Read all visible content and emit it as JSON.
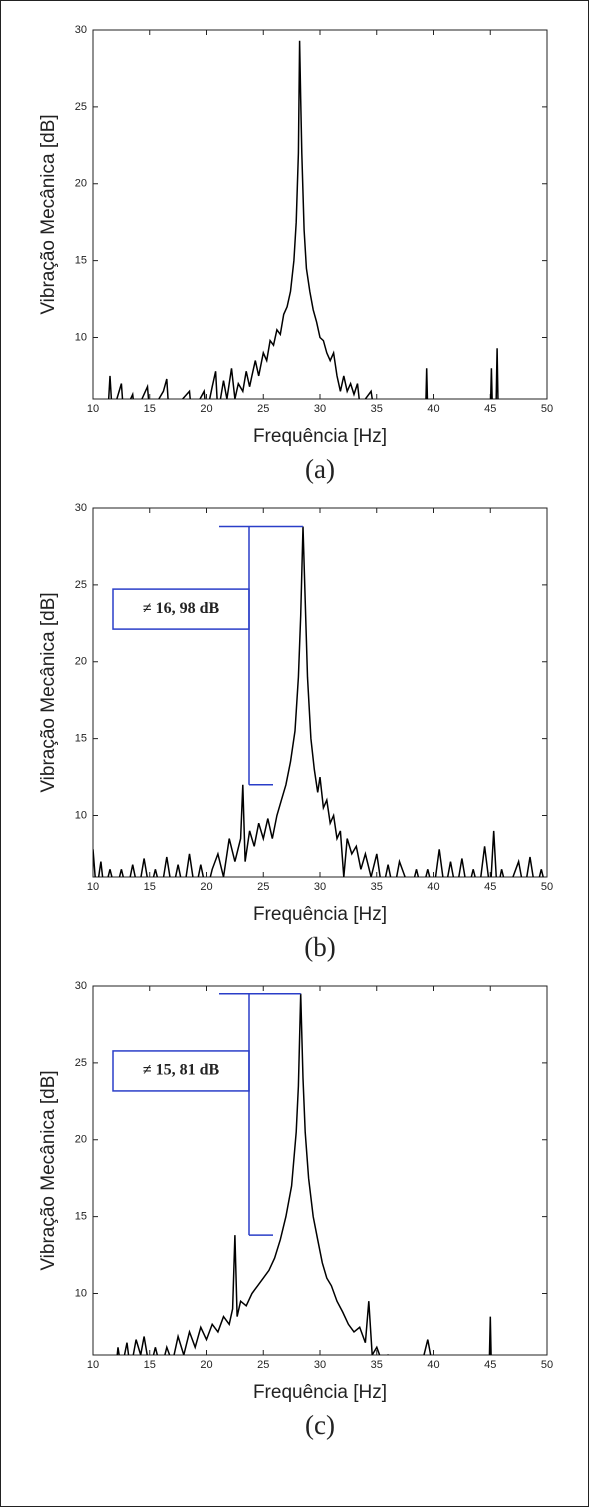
{
  "chart_data": [
    {
      "type": "line",
      "caption": "(a)",
      "xlabel": "Frequência [Hz]",
      "ylabel": "Vibração Mecânica [dB]",
      "color": "#000000",
      "xlim": [
        10,
        50
      ],
      "ylim": [
        6,
        30
      ],
      "xticks": [
        10,
        15,
        20,
        25,
        30,
        35,
        40,
        45,
        50
      ],
      "yticks": [
        10,
        15,
        20,
        25,
        30
      ],
      "x": [
        10,
        11.3,
        11.5,
        11.7,
        12.5,
        12.7,
        13.5,
        13.7,
        14.8,
        15,
        16.2,
        16.5,
        16.7,
        18.5,
        18.7,
        19.8,
        20,
        20.5,
        20.8,
        21,
        21.5,
        21.8,
        22.2,
        22.5,
        22.8,
        23.2,
        23.5,
        23.8,
        24,
        24.3,
        24.6,
        25,
        25.3,
        25.6,
        25.9,
        26.2,
        26.5,
        26.8,
        27.1,
        27.4,
        27.7,
        27.9,
        28.1,
        28.2,
        28.3,
        28.4,
        28.6,
        28.8,
        29.1,
        29.4,
        29.7,
        30,
        30.3,
        30.6,
        30.9,
        31.2,
        31.5,
        31.8,
        32.1,
        32.4,
        32.7,
        33,
        33.3,
        33.6,
        34,
        34.5,
        34.8,
        39.3,
        39.4,
        39.5,
        45,
        45.1,
        45.2,
        45.5,
        45.6,
        45.7,
        50
      ],
      "values": [
        5,
        5,
        7.5,
        5,
        7,
        5,
        6.3,
        5,
        6.8,
        5,
        6.5,
        7.3,
        5,
        6.5,
        5,
        6.5,
        5,
        6.8,
        7.8,
        5,
        7.2,
        6,
        8,
        6,
        7,
        6.5,
        7.8,
        6.8,
        7.5,
        8.5,
        7.5,
        9,
        8.5,
        9.8,
        9.5,
        10.5,
        10.2,
        11.5,
        12,
        13,
        15,
        17.5,
        22,
        29.3,
        25.5,
        22,
        17,
        14.5,
        13,
        11.8,
        11,
        10,
        9.8,
        9,
        8.5,
        9,
        7.5,
        6.5,
        7.5,
        6.5,
        7,
        6.3,
        7,
        5,
        6,
        6.5,
        5,
        5,
        8,
        5,
        5,
        8,
        5,
        5,
        9.3,
        5,
        5
      ]
    },
    {
      "type": "line",
      "caption": "(b)",
      "xlabel": "Frequência [Hz]",
      "ylabel": "Vibração Mecânica [dB]",
      "color": "#000000",
      "annotation": "≠ 16, 98 dB",
      "xlim": [
        10,
        50
      ],
      "ylim": [
        6,
        30
      ],
      "xticks": [
        10,
        15,
        20,
        25,
        30,
        35,
        40,
        45,
        50
      ],
      "yticks": [
        10,
        15,
        20,
        25,
        30
      ],
      "x": [
        10,
        10.3,
        10.7,
        11,
        11.5,
        12,
        12.5,
        13,
        13.5,
        14,
        14.5,
        15,
        15.5,
        16,
        16.5,
        17,
        17.5,
        18,
        18.5,
        19,
        19.5,
        20,
        20.5,
        21,
        21.5,
        22,
        22.5,
        23,
        23.2,
        23.4,
        23.8,
        24.2,
        24.6,
        25,
        25.4,
        25.8,
        26.2,
        26.6,
        27,
        27.4,
        27.8,
        28.1,
        28.3,
        28.5,
        28.7,
        28.9,
        29.2,
        29.5,
        29.8,
        30,
        30.3,
        30.6,
        30.9,
        31.2,
        31.5,
        31.8,
        32.1,
        32.4,
        32.8,
        33.2,
        33.6,
        34,
        34.5,
        35,
        35.5,
        36,
        36.5,
        37,
        37.5,
        38,
        38.5,
        39,
        39.5,
        40,
        40.5,
        41,
        41.5,
        42,
        42.5,
        43,
        43.5,
        44,
        44.5,
        45,
        45.3,
        45.6,
        46,
        46.5,
        47.5,
        48,
        48.5,
        49,
        49.5,
        50
      ],
      "values": [
        7.8,
        5,
        7,
        5,
        6.5,
        5,
        6.5,
        5,
        6.8,
        5,
        7.2,
        5,
        6.5,
        5,
        7.3,
        5,
        6.8,
        5,
        7.5,
        5,
        6.8,
        5,
        6.5,
        7.5,
        6,
        8.5,
        7,
        8.5,
        12,
        7,
        9,
        8,
        9.5,
        8.5,
        9.8,
        8.5,
        10,
        11,
        12,
        13.5,
        15.5,
        19,
        23,
        28.8,
        24,
        19,
        15,
        13,
        11.5,
        12.5,
        10.5,
        11,
        9.5,
        10,
        8.5,
        9,
        6,
        8.5,
        7.5,
        8,
        6.5,
        7.5,
        6,
        7.5,
        5,
        6.8,
        5,
        7,
        6,
        5,
        6.5,
        5,
        6.5,
        5,
        7.8,
        5,
        7,
        5,
        7.2,
        5,
        6.5,
        5,
        8,
        5,
        9,
        5,
        6.5,
        5,
        7,
        5,
        7.3,
        5,
        6.5,
        5
      ]
    },
    {
      "type": "line",
      "caption": "(c)",
      "xlabel": "Frequência [Hz]",
      "ylabel": "Vibração Mecânica [dB]",
      "color": "#000000",
      "annotation": "≠ 15, 81 dB",
      "xlim": [
        10,
        50
      ],
      "ylim": [
        6,
        30
      ],
      "xticks": [
        10,
        15,
        20,
        25,
        30,
        35,
        40,
        45,
        50
      ],
      "yticks": [
        10,
        15,
        20,
        25,
        30
      ],
      "x": [
        10,
        12,
        12.2,
        12.5,
        13,
        13.3,
        13.8,
        14.2,
        14.5,
        15,
        15.5,
        16,
        16.5,
        17,
        17.5,
        18,
        18.5,
        19,
        19.5,
        20,
        20.5,
        21,
        21.5,
        22,
        22.3,
        22.5,
        22.7,
        23,
        23.5,
        24,
        24.5,
        25,
        25.5,
        26,
        26.5,
        27,
        27.5,
        27.9,
        28.1,
        28.3,
        28.5,
        28.7,
        29,
        29.4,
        29.8,
        30.2,
        30.6,
        31,
        31.5,
        32,
        32.5,
        33,
        33.5,
        34,
        34.3,
        34.6,
        35,
        35.5,
        36,
        37,
        38,
        39,
        39.5,
        40,
        44.9,
        45,
        45.1,
        50
      ],
      "values": [
        5,
        5,
        6.5,
        5,
        6.8,
        5,
        7,
        6,
        7.2,
        5,
        6.5,
        5,
        6.5,
        5.5,
        7.2,
        6,
        7.5,
        6.5,
        7.8,
        7,
        8,
        7.5,
        8.5,
        8,
        9,
        13.8,
        8.5,
        9.5,
        9.2,
        10,
        10.5,
        11,
        11.5,
        12.3,
        13.5,
        15,
        17,
        20.5,
        23.5,
        29.5,
        24,
        20.5,
        17.5,
        15,
        13.5,
        12,
        11,
        10.5,
        9.5,
        8.8,
        8,
        7.5,
        7.8,
        6.8,
        9.5,
        6,
        6.5,
        5.5,
        6,
        5.5,
        5.5,
        5.5,
        7,
        5,
        5,
        8.5,
        5,
        5
      ]
    }
  ]
}
